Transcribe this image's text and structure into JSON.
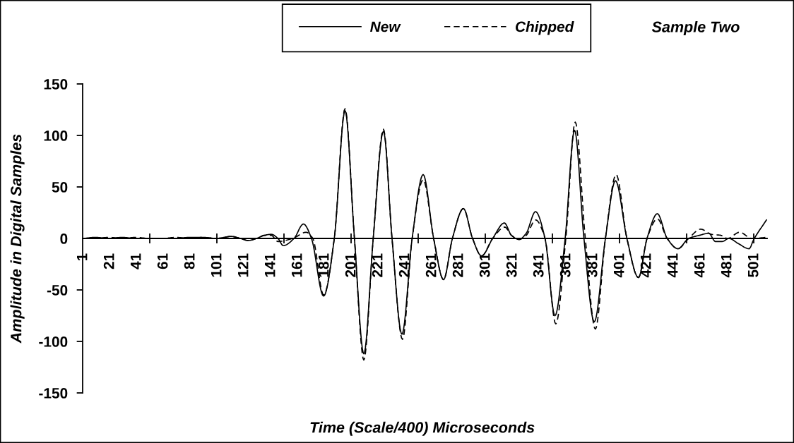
{
  "chart_data": {
    "type": "line",
    "title": "Sample Two",
    "xlabel": "Time (Scale/400) Microseconds",
    "ylabel": "Amplitude in Digital Samples",
    "xlim": [
      0.5,
      510.5
    ],
    "ylim": [
      -150,
      150
    ],
    "yticks": [
      -150,
      -100,
      -50,
      0,
      50,
      100,
      150
    ],
    "xticks": [
      1,
      21,
      41,
      61,
      81,
      101,
      121,
      141,
      161,
      181,
      201,
      221,
      241,
      261,
      281,
      301,
      321,
      341,
      361,
      381,
      401,
      421,
      441,
      461,
      481,
      501,
      {
        "value": 50.5,
        "label": null
      },
      {
        "value": 100.5,
        "label": null
      },
      {
        "value": 150.5,
        "label": null
      },
      {
        "value": 200.5,
        "label": null
      },
      {
        "value": 250.5,
        "label": null
      },
      {
        "value": 300.5,
        "label": null
      },
      {
        "value": 350.5,
        "label": null
      },
      {
        "value": 400.5,
        "label": null
      },
      {
        "value": 450.5,
        "label": null
      },
      {
        "value": 500.5,
        "label": null
      }
    ],
    "legend": "top",
    "series": [
      {
        "name": "New",
        "color": "#000000",
        "line_style": "solid",
        "x": [
          1,
          10,
          20,
          30,
          40,
          50,
          60,
          70,
          80,
          90,
          100,
          106,
          111,
          118,
          124,
          130,
          136,
          141,
          146,
          150,
          158,
          165,
          171,
          180,
          188,
          196,
          203,
          210,
          217,
          224.6,
          231,
          238.4,
          246,
          254.2,
          262,
          269.4,
          276,
          284.2,
          291,
          297.7,
          306,
          314.7,
          320,
          325.7,
          331,
          337.9,
          345,
          352.4,
          360,
          367,
          374,
          381.7,
          390,
          397.5,
          406,
          414.6,
          421,
          428.7,
          436,
          444,
          452,
          460,
          467,
          472,
          477,
          482,
          489,
          497,
          500.5,
          510
        ],
        "values": [
          0,
          1,
          0,
          1,
          0,
          0,
          0,
          0,
          1,
          1,
          0,
          1,
          2,
          0,
          -2,
          0,
          3,
          4,
          0,
          -7,
          0,
          14,
          0,
          -56,
          0,
          124,
          0,
          -112,
          0,
          104,
          0,
          -93,
          0,
          62,
          0,
          -40,
          0,
          29,
          0,
          -17,
          0,
          15,
          3,
          -1,
          5,
          26,
          0,
          -75,
          0,
          105,
          0,
          -81,
          0,
          56,
          0,
          -38,
          0,
          24,
          0,
          -10,
          0,
          3,
          5,
          -3,
          -3,
          0,
          -5,
          -10,
          -1,
          18
        ]
      },
      {
        "name": "Chipped",
        "color": "#000000",
        "line_style": "dashed",
        "x": [
          1,
          10,
          20,
          30,
          40,
          50,
          60,
          70,
          80,
          90,
          100,
          106,
          111,
          118,
          124,
          130,
          136,
          141,
          146,
          157,
          167,
          172,
          180,
          188,
          196,
          203,
          210,
          217,
          224.6,
          231,
          238.8,
          246,
          254.2,
          262,
          269.4,
          276,
          284.2,
          291,
          297.7,
          306,
          315,
          320,
          325.7,
          331,
          338,
          345,
          353,
          360.5,
          367.5,
          375,
          382.5,
          390,
          398,
          406,
          414.6,
          421,
          428.7,
          436,
          444,
          452,
          461,
          469,
          476,
          481,
          490,
          499,
          510
        ],
        "values": [
          0,
          0,
          1,
          0,
          1,
          0,
          0,
          1,
          0,
          1,
          0,
          1,
          2,
          0,
          -2,
          0,
          3,
          3,
          -3,
          0,
          6,
          0,
          -55,
          0,
          126,
          0,
          -118,
          0,
          106,
          0,
          -98,
          0,
          57,
          0,
          -40,
          0,
          29,
          0,
          -17,
          0,
          11,
          3,
          -1,
          3,
          18,
          0,
          -83,
          0,
          113,
          0,
          -88,
          0,
          62,
          0,
          -38,
          0,
          19,
          0,
          -10,
          0,
          9,
          4,
          3,
          0,
          6,
          0,
          1
        ]
      }
    ]
  }
}
